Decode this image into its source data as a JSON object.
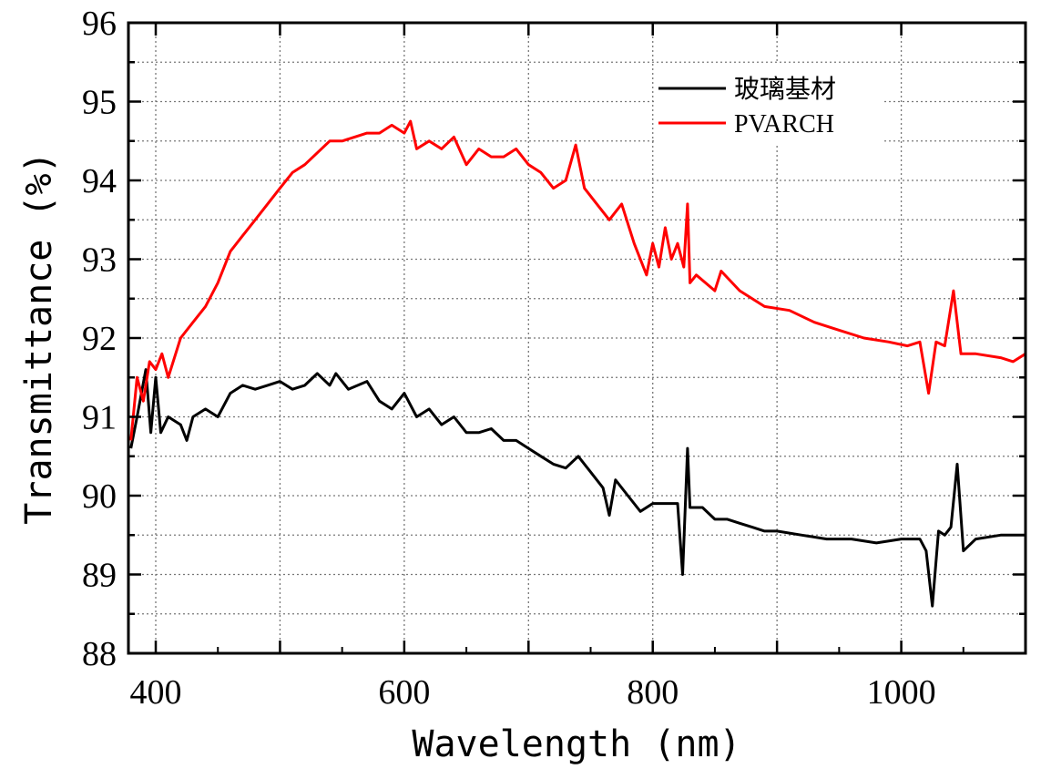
{
  "chart_data": {
    "type": "line",
    "title": "",
    "xlabel": "Wavelength (nm)",
    "ylabel": "Transmittance (%)",
    "xlim": [
      378,
      1100
    ],
    "ylim": [
      88,
      96
    ],
    "xticks": [
      "400",
      "600",
      "800",
      "1000"
    ],
    "yticks": [
      "88",
      "89",
      "90",
      "91",
      "92",
      "93",
      "94",
      "95",
      "96"
    ],
    "grid": true,
    "legend_position": "top-right",
    "series": [
      {
        "name": "玻璃基材",
        "color": "#000000",
        "points": [
          [
            380,
            90.6
          ],
          [
            385,
            91.0
          ],
          [
            392,
            91.6
          ],
          [
            396,
            90.8
          ],
          [
            400,
            91.5
          ],
          [
            404,
            90.8
          ],
          [
            410,
            91.0
          ],
          [
            420,
            90.9
          ],
          [
            425,
            90.7
          ],
          [
            430,
            91.0
          ],
          [
            440,
            91.1
          ],
          [
            450,
            91.0
          ],
          [
            460,
            91.3
          ],
          [
            470,
            91.4
          ],
          [
            480,
            91.35
          ],
          [
            490,
            91.4
          ],
          [
            500,
            91.45
          ],
          [
            510,
            91.35
          ],
          [
            520,
            91.4
          ],
          [
            530,
            91.55
          ],
          [
            540,
            91.4
          ],
          [
            545,
            91.55
          ],
          [
            555,
            91.35
          ],
          [
            570,
            91.45
          ],
          [
            580,
            91.2
          ],
          [
            590,
            91.1
          ],
          [
            600,
            91.3
          ],
          [
            610,
            91.0
          ],
          [
            620,
            91.1
          ],
          [
            630,
            90.9
          ],
          [
            640,
            91.0
          ],
          [
            650,
            90.8
          ],
          [
            660,
            90.8
          ],
          [
            670,
            90.85
          ],
          [
            680,
            90.7
          ],
          [
            690,
            90.7
          ],
          [
            700,
            90.6
          ],
          [
            710,
            90.5
          ],
          [
            720,
            90.4
          ],
          [
            730,
            90.35
          ],
          [
            740,
            90.5
          ],
          [
            750,
            90.3
          ],
          [
            760,
            90.1
          ],
          [
            765,
            89.75
          ],
          [
            770,
            90.2
          ],
          [
            780,
            90.0
          ],
          [
            790,
            89.8
          ],
          [
            800,
            89.9
          ],
          [
            810,
            89.9
          ],
          [
            820,
            89.9
          ],
          [
            824,
            89.0
          ],
          [
            826,
            89.8
          ],
          [
            828,
            90.6
          ],
          [
            830,
            89.85
          ],
          [
            840,
            89.85
          ],
          [
            850,
            89.7
          ],
          [
            860,
            89.7
          ],
          [
            870,
            89.65
          ],
          [
            880,
            89.6
          ],
          [
            890,
            89.55
          ],
          [
            900,
            89.55
          ],
          [
            920,
            89.5
          ],
          [
            940,
            89.45
          ],
          [
            960,
            89.45
          ],
          [
            980,
            89.4
          ],
          [
            1000,
            89.45
          ],
          [
            1015,
            89.45
          ],
          [
            1020,
            89.3
          ],
          [
            1025,
            88.6
          ],
          [
            1030,
            89.55
          ],
          [
            1035,
            89.5
          ],
          [
            1040,
            89.6
          ],
          [
            1045,
            90.4
          ],
          [
            1050,
            89.3
          ],
          [
            1060,
            89.45
          ],
          [
            1080,
            89.5
          ],
          [
            1100,
            89.5
          ]
        ]
      },
      {
        "name": "PVARCH",
        "color": "#ff0000",
        "points": [
          [
            380,
            90.7
          ],
          [
            385,
            91.5
          ],
          [
            390,
            91.2
          ],
          [
            395,
            91.7
          ],
          [
            400,
            91.6
          ],
          [
            405,
            91.8
          ],
          [
            410,
            91.5
          ],
          [
            420,
            92.0
          ],
          [
            430,
            92.2
          ],
          [
            440,
            92.4
          ],
          [
            450,
            92.7
          ],
          [
            460,
            93.1
          ],
          [
            470,
            93.3
          ],
          [
            480,
            93.5
          ],
          [
            490,
            93.7
          ],
          [
            500,
            93.9
          ],
          [
            510,
            94.1
          ],
          [
            520,
            94.2
          ],
          [
            530,
            94.35
          ],
          [
            540,
            94.5
          ],
          [
            550,
            94.5
          ],
          [
            560,
            94.55
          ],
          [
            570,
            94.6
          ],
          [
            580,
            94.6
          ],
          [
            590,
            94.7
          ],
          [
            600,
            94.6
          ],
          [
            605,
            94.75
          ],
          [
            610,
            94.4
          ],
          [
            620,
            94.5
          ],
          [
            630,
            94.4
          ],
          [
            640,
            94.55
          ],
          [
            650,
            94.2
          ],
          [
            660,
            94.4
          ],
          [
            670,
            94.3
          ],
          [
            680,
            94.3
          ],
          [
            690,
            94.4
          ],
          [
            700,
            94.2
          ],
          [
            710,
            94.1
          ],
          [
            720,
            93.9
          ],
          [
            730,
            94.0
          ],
          [
            738,
            94.45
          ],
          [
            745,
            93.9
          ],
          [
            755,
            93.7
          ],
          [
            765,
            93.5
          ],
          [
            775,
            93.7
          ],
          [
            785,
            93.2
          ],
          [
            795,
            92.8
          ],
          [
            800,
            93.2
          ],
          [
            805,
            92.9
          ],
          [
            810,
            93.4
          ],
          [
            815,
            93.0
          ],
          [
            820,
            93.2
          ],
          [
            825,
            92.9
          ],
          [
            828,
            93.7
          ],
          [
            830,
            92.7
          ],
          [
            835,
            92.8
          ],
          [
            850,
            92.6
          ],
          [
            855,
            92.85
          ],
          [
            870,
            92.6
          ],
          [
            890,
            92.4
          ],
          [
            910,
            92.35
          ],
          [
            930,
            92.2
          ],
          [
            950,
            92.1
          ],
          [
            970,
            92.0
          ],
          [
            990,
            91.95
          ],
          [
            1005,
            91.9
          ],
          [
            1015,
            91.95
          ],
          [
            1022,
            91.3
          ],
          [
            1028,
            91.95
          ],
          [
            1035,
            91.9
          ],
          [
            1042,
            92.6
          ],
          [
            1048,
            91.8
          ],
          [
            1060,
            91.8
          ],
          [
            1080,
            91.75
          ],
          [
            1090,
            91.7
          ],
          [
            1100,
            91.8
          ]
        ]
      }
    ]
  }
}
